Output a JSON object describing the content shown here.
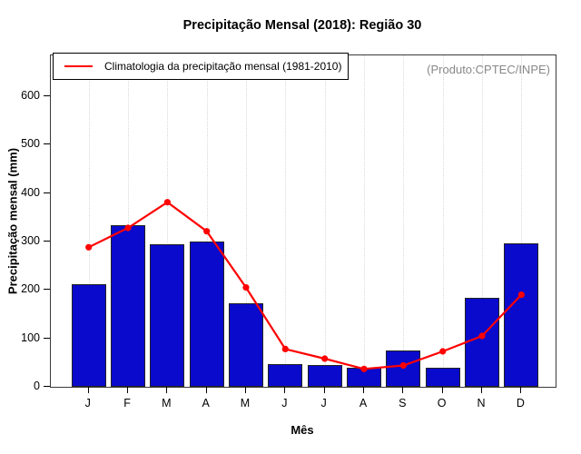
{
  "title": "Precipitação Mensal (2018): Região 30",
  "legend": {
    "label": "Climatologia da precipitação mensal (1981-2010)"
  },
  "watermark": "(Produto:CPTEC/INPE)",
  "chart_data": {
    "type": "bar",
    "title": "Precipitação Mensal (2018): Região 30",
    "xlabel": "Mês",
    "ylabel": "Precipitação mensal (mm)",
    "categories": [
      "J",
      "F",
      "M",
      "A",
      "M",
      "J",
      "J",
      "A",
      "S",
      "O",
      "N",
      "D"
    ],
    "series": [
      {
        "name": "Precipitação mensal 2018",
        "type": "bar",
        "color": "#0a0acd",
        "values": [
          211,
          334,
          294,
          300,
          172,
          46,
          45,
          40,
          75,
          40,
          184,
          296
        ]
      },
      {
        "name": "Climatologia da precipitação mensal (1981-2010)",
        "type": "line",
        "color": "#ff0000",
        "values": [
          288,
          328,
          381,
          321,
          205,
          78,
          58,
          37,
          44,
          73,
          105,
          190
        ]
      }
    ],
    "ylim": [
      0,
      684
    ],
    "yticks": [
      0,
      100,
      200,
      300,
      400,
      500,
      600
    ],
    "grid": "vertical-dotted",
    "grid_color": "#d9d9d9",
    "legend_position": "top-left"
  }
}
